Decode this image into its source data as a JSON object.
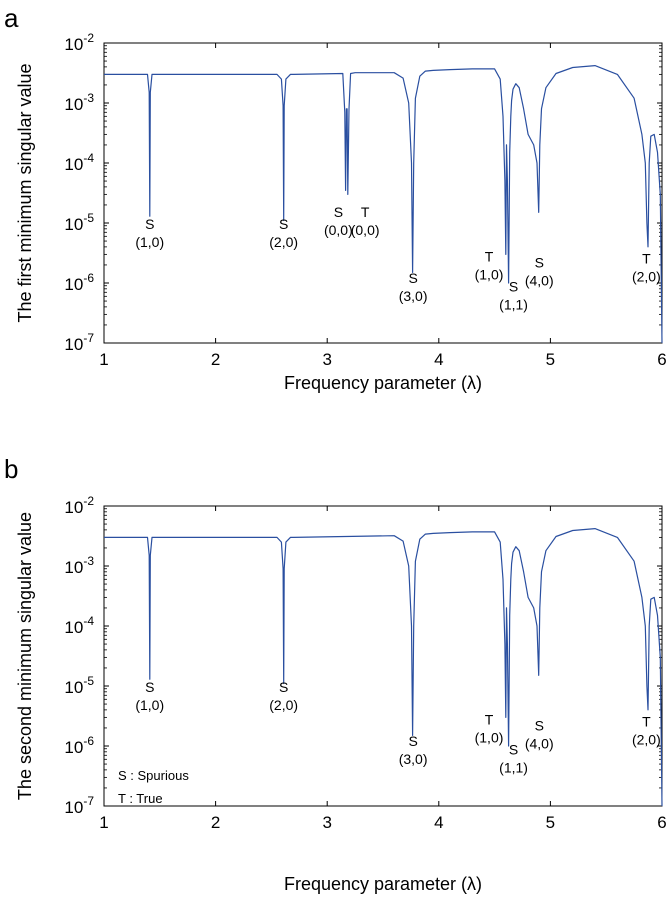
{
  "chart_data": [
    {
      "panel": "a",
      "type": "line",
      "xlabel": "Frequency parameter (λ)",
      "ylabel": "The first minimum singular value",
      "xlim": [
        1,
        6
      ],
      "ylim": [
        1e-07,
        0.01
      ],
      "yscale": "log",
      "xticks": [
        "1",
        "2",
        "3",
        "4",
        "5",
        "6"
      ],
      "yticks": [
        {
          "base": "10",
          "exp": "-7"
        },
        {
          "base": "10",
          "exp": "-6"
        },
        {
          "base": "10",
          "exp": "-5"
        },
        {
          "base": "10",
          "exp": "-4"
        },
        {
          "base": "10",
          "exp": "-3"
        },
        {
          "base": "10",
          "exp": "-2"
        }
      ],
      "line_color": "#2a4fa0",
      "series": [
        {
          "x": [
            1.0,
            1.39,
            1.405,
            1.41,
            1.415,
            1.43,
            2.55,
            2.59,
            2.605,
            2.61,
            2.615,
            2.63,
            2.67,
            2.7,
            3.14,
            3.158,
            3.165,
            3.172,
            3.178,
            3.185,
            3.195,
            3.21,
            3.25,
            3.6,
            3.68,
            3.73,
            3.755,
            3.765,
            3.775,
            3.79,
            3.83,
            3.88,
            3.95,
            4.1,
            4.3,
            4.5,
            4.55,
            4.575,
            4.592,
            4.6,
            4.607,
            4.615,
            4.625,
            4.635,
            4.645,
            4.652,
            4.665,
            4.69,
            4.72,
            4.76,
            4.8,
            4.85,
            4.88,
            4.895,
            4.905,
            4.92,
            4.96,
            5.05,
            5.2,
            5.4,
            5.6,
            5.75,
            5.82,
            5.85,
            5.865,
            5.875,
            5.885,
            5.9,
            5.93,
            5.96,
            5.985,
            6.0
          ],
          "y": [
            0.003,
            0.003,
            0.0015,
            1.3e-05,
            0.0015,
            0.003,
            0.003,
            0.0025,
            0.0009,
            1.1e-05,
            0.0009,
            0.0025,
            0.003,
            0.003,
            0.0031,
            0.0007,
            3.5e-05,
            0.0008,
            0.0008,
            3e-05,
            0.0008,
            0.0031,
            0.0032,
            0.0032,
            0.0026,
            0.001,
            0.0001,
            1.5e-06,
            0.0001,
            0.0012,
            0.0028,
            0.0034,
            0.0035,
            0.0036,
            0.0037,
            0.0037,
            0.0025,
            0.0006,
            5e-05,
            3e-06,
            0.0002,
            5e-05,
            1e-06,
            0.00015,
            0.0006,
            0.0011,
            0.0017,
            0.0021,
            0.0018,
            0.0008,
            0.0003,
            0.0002,
            0.0001,
            1.5e-05,
            0.0002,
            0.0008,
            0.0018,
            0.0031,
            0.0039,
            0.0042,
            0.003,
            0.0012,
            0.0003,
            0.0001,
            1e-05,
            4e-06,
            0.0001,
            0.00028,
            0.0003,
            0.00015,
            3e-05,
            1e-07
          ]
        }
      ],
      "annotations": [
        {
          "x": 1.41,
          "y": 8e-06,
          "label": "S",
          "sub": "(1,0)"
        },
        {
          "x": 2.61,
          "y": 8e-06,
          "label": "S",
          "sub": "(2,0)"
        },
        {
          "x": 3.1,
          "y": 1.25e-05,
          "label": "S",
          "sub": "(0,0)"
        },
        {
          "x": 3.34,
          "y": 1.25e-05,
          "label": "T",
          "sub": "(0,0)"
        },
        {
          "x": 3.77,
          "y": 1e-06,
          "label": "S",
          "sub": "(3,0)"
        },
        {
          "x": 4.45,
          "y": 2.3e-06,
          "label": "T",
          "sub": "(1,0)"
        },
        {
          "x": 4.67,
          "y": 7.2e-07,
          "label": "S",
          "sub": "(1,1)"
        },
        {
          "x": 4.9,
          "y": 1.8e-06,
          "label": "S",
          "sub": "(4,0)"
        },
        {
          "x": 5.86,
          "y": 2.1e-06,
          "label": "T",
          "sub": "(2,0)"
        }
      ]
    },
    {
      "panel": "b",
      "type": "line",
      "xlabel": "Frequency parameter (λ)",
      "ylabel": "The second minimum singular value",
      "xlim": [
        1,
        6
      ],
      "ylim": [
        1e-07,
        0.01
      ],
      "yscale": "log",
      "xticks": [
        "1",
        "2",
        "3",
        "4",
        "5",
        "6"
      ],
      "yticks": [
        {
          "base": "10",
          "exp": "-7"
        },
        {
          "base": "10",
          "exp": "-6"
        },
        {
          "base": "10",
          "exp": "-5"
        },
        {
          "base": "10",
          "exp": "-4"
        },
        {
          "base": "10",
          "exp": "-3"
        },
        {
          "base": "10",
          "exp": "-2"
        }
      ],
      "line_color": "#2a4fa0",
      "series": [
        {
          "x": [
            1.0,
            1.39,
            1.405,
            1.41,
            1.415,
            1.43,
            2.55,
            2.59,
            2.605,
            2.61,
            2.615,
            2.63,
            2.67,
            2.7,
            3.6,
            3.68,
            3.73,
            3.755,
            3.765,
            3.775,
            3.79,
            3.83,
            3.88,
            3.95,
            4.1,
            4.3,
            4.5,
            4.55,
            4.575,
            4.592,
            4.6,
            4.607,
            4.615,
            4.625,
            4.635,
            4.645,
            4.652,
            4.665,
            4.69,
            4.72,
            4.76,
            4.8,
            4.85,
            4.88,
            4.895,
            4.905,
            4.92,
            4.96,
            5.05,
            5.2,
            5.4,
            5.6,
            5.75,
            5.82,
            5.85,
            5.865,
            5.875,
            5.885,
            5.9,
            5.93,
            5.96,
            5.985,
            6.0
          ],
          "y": [
            0.003,
            0.003,
            0.0015,
            1.3e-05,
            0.0015,
            0.003,
            0.003,
            0.0025,
            0.0009,
            1.1e-05,
            0.0009,
            0.0025,
            0.003,
            0.003,
            0.0032,
            0.0026,
            0.001,
            0.0001,
            1.5e-06,
            0.0001,
            0.0012,
            0.0028,
            0.0034,
            0.0035,
            0.0036,
            0.0037,
            0.0037,
            0.0025,
            0.0006,
            5e-05,
            3e-06,
            0.0002,
            5e-05,
            1e-06,
            0.00015,
            0.0006,
            0.0011,
            0.0017,
            0.0021,
            0.0018,
            0.0008,
            0.0003,
            0.0002,
            0.0001,
            1.5e-05,
            0.0002,
            0.0008,
            0.0018,
            0.0031,
            0.0039,
            0.0042,
            0.003,
            0.0012,
            0.0003,
            0.0001,
            1e-05,
            4e-06,
            0.0001,
            0.00028,
            0.0003,
            0.00015,
            3e-05,
            1e-07
          ]
        }
      ],
      "annotations": [
        {
          "x": 1.41,
          "y": 8e-06,
          "label": "S",
          "sub": "(1,0)"
        },
        {
          "x": 2.61,
          "y": 8e-06,
          "label": "S",
          "sub": "(2,0)"
        },
        {
          "x": 3.77,
          "y": 1e-06,
          "label": "S",
          "sub": "(3,0)"
        },
        {
          "x": 4.45,
          "y": 2.3e-06,
          "label": "T",
          "sub": "(1,0)"
        },
        {
          "x": 4.67,
          "y": 7.2e-07,
          "label": "S",
          "sub": "(1,1)"
        },
        {
          "x": 4.9,
          "y": 1.8e-06,
          "label": "S",
          "sub": "(4,0)"
        },
        {
          "x": 5.86,
          "y": 2.1e-06,
          "label": "T",
          "sub": "(2,0)"
        }
      ],
      "legend": [
        "S : Spurious",
        "T : True"
      ]
    }
  ]
}
